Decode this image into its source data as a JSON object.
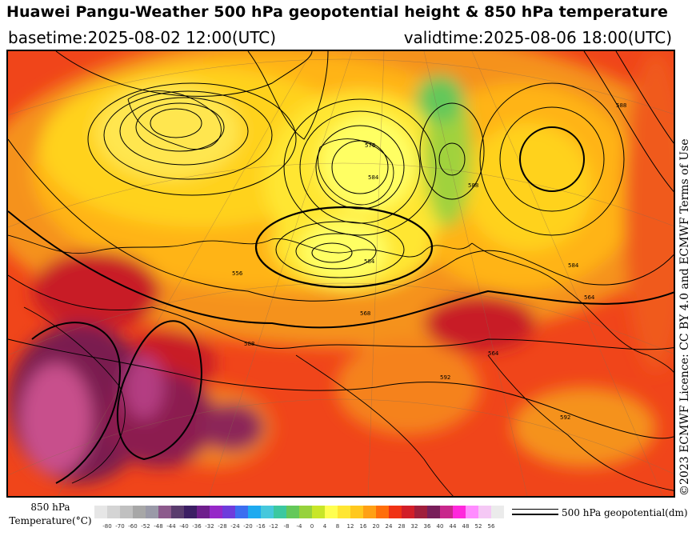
{
  "header": {
    "title": "Huawei Pangu-Weather 500 hPa geopotential height & 850 hPa temperature",
    "basetime": "basetime:2025-08-02 12:00(UTC)",
    "validtime": "validtime:2025-08-06 18:00(UTC)"
  },
  "license": "©2023 ECMWF Licence: CC BY 4.0 and ECMWF Terms of Use",
  "legend": {
    "title_line1": "850 hPa",
    "title_line2": "Temperature(°C)",
    "ticks": [
      "-80",
      "-70",
      "-60",
      "-52",
      "-48",
      "-44",
      "-40",
      "-36",
      "-32",
      "-28",
      "-24",
      "-20",
      "-16",
      "-12",
      "-8",
      "-4",
      "0",
      "4",
      "8",
      "12",
      "16",
      "20",
      "24",
      "28",
      "32",
      "36",
      "40",
      "44",
      "48",
      "52",
      "56"
    ],
    "colors": [
      "#e6e6e6",
      "#d4d4d4",
      "#c0c0c0",
      "#a7a7a7",
      "#9a9aa8",
      "#8c5a8c",
      "#5a3c6e",
      "#3c1e64",
      "#6e1e8c",
      "#9628c8",
      "#6e3cdc",
      "#3c6ef0",
      "#1eaaf0",
      "#46c8dc",
      "#3cc8a0",
      "#64c85a",
      "#96d23c",
      "#c8e628",
      "#ffff50",
      "#ffe632",
      "#ffc81e",
      "#ffa014",
      "#ff6e0a",
      "#f03214",
      "#d21e28",
      "#a01e3c",
      "#781e5a",
      "#c8288c",
      "#ff28dc",
      "#ff8cff",
      "#f5c8f5",
      "#ebebeb"
    ],
    "contour_label": "500 hPa geopotential(dm)"
  },
  "map": {
    "contour_labels": [
      "584",
      "576",
      "588",
      "564",
      "584",
      "568",
      "588",
      "556",
      "588",
      "584",
      "564",
      "592",
      "592"
    ]
  }
}
